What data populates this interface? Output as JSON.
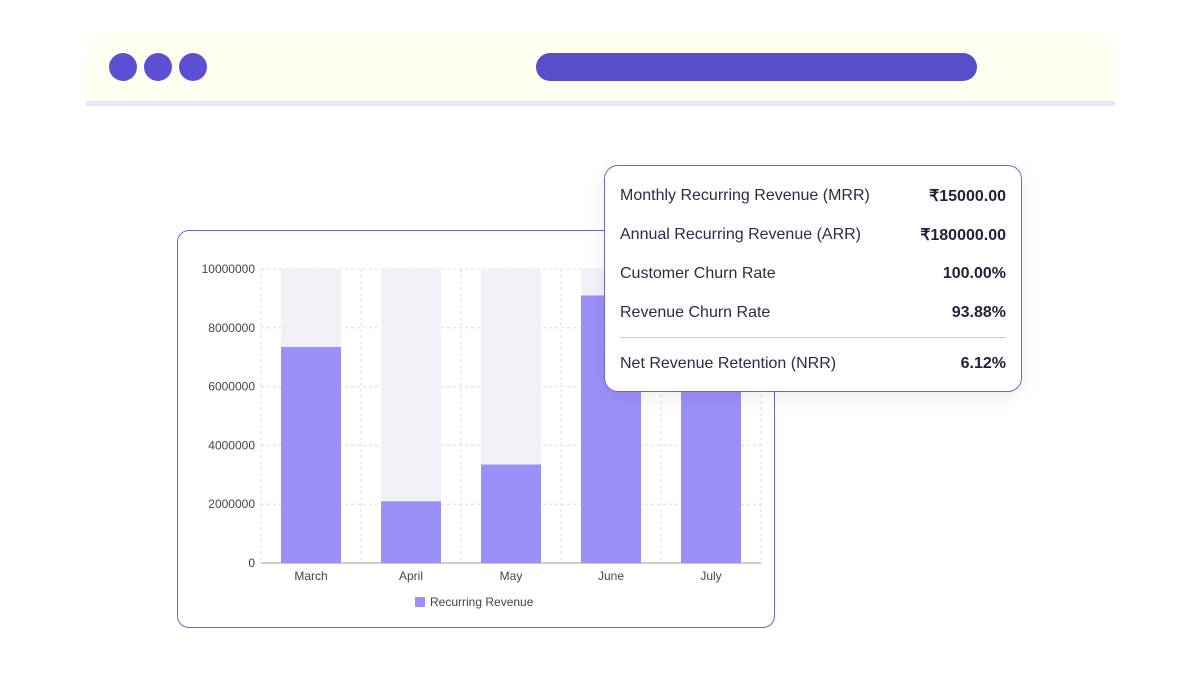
{
  "browser": {
    "accent": "#574ecb"
  },
  "chart_data": {
    "type": "bar",
    "categories": [
      "March",
      "April",
      "May",
      "June",
      "July"
    ],
    "series": [
      {
        "name": "Recurring Revenue",
        "values": [
          7350000,
          2100000,
          3350000,
          9100000,
          6000000
        ],
        "color": "#9b8ff8"
      }
    ],
    "ylim": [
      0,
      10000000
    ],
    "yticks": [
      "0",
      "2000000",
      "4000000",
      "6000000",
      "8000000",
      "10000000"
    ],
    "grid": true,
    "legend": "bottom",
    "background_bar_color": "#f1f1f7"
  },
  "legend": {
    "label": "Recurring Revenue"
  },
  "stats": [
    {
      "label": "Monthly Recurring Revenue (MRR)",
      "value": "₹15000.00"
    },
    {
      "label": "Annual Recurring Revenue (ARR)",
      "value": "₹180000.00"
    },
    {
      "label": "Customer Churn Rate",
      "value": "100.00%"
    },
    {
      "label": "Revenue Churn Rate",
      "value": "93.88%"
    },
    {
      "label": "Net Revenue Retention (NRR)",
      "value": "6.12%"
    }
  ]
}
